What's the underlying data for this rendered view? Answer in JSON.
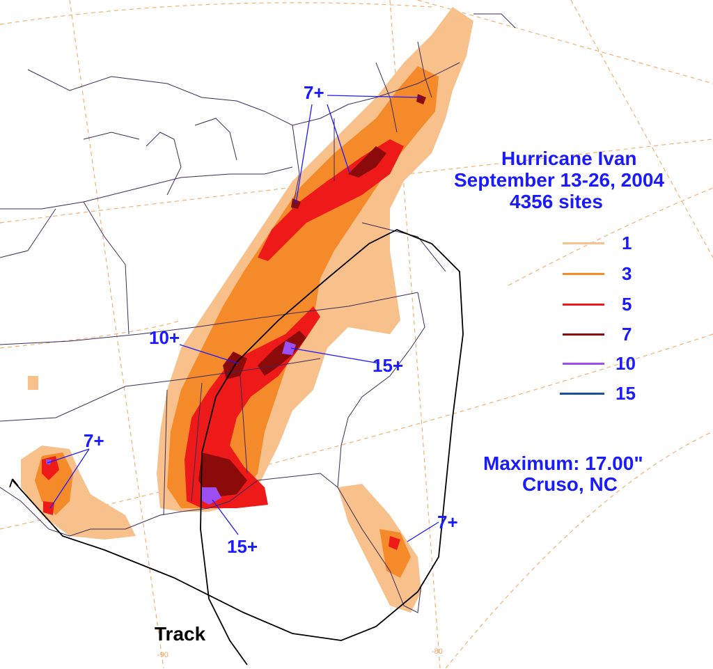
{
  "title": {
    "line1": "Hurricane Ivan",
    "line2": "September 13-26, 2004",
    "line3": "4356 sites"
  },
  "legend": [
    {
      "value": "1",
      "color": "#f8c08a"
    },
    {
      "value": "3",
      "color": "#f58a2a"
    },
    {
      "value": "5",
      "color": "#ee1a1a"
    },
    {
      "value": "7",
      "color": "#8b0a0a"
    },
    {
      "value": "10",
      "color": "#9b4ff0"
    },
    {
      "value": "15",
      "color": "#1a4f9a"
    }
  ],
  "maximum": {
    "label": "Maximum: 17.00\"",
    "location": "Cruso, NC"
  },
  "annotations": {
    "ne_7": "7+",
    "tn_10": "10+",
    "nc_15": "15+",
    "tx_7": "7+",
    "gulf_15": "15+",
    "fl_7": "7+",
    "track": "Track"
  },
  "longitude_ticks": {
    "left": "-90",
    "right": "-80"
  },
  "colors": {
    "annotation_blue": "#1a1aff",
    "grid": "#f0b070",
    "state_lines": "#3a2a5a",
    "track": "#000000"
  }
}
